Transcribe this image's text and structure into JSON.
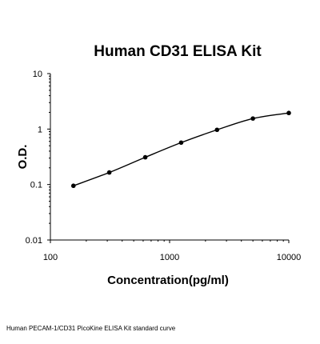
{
  "chart_data": {
    "type": "line",
    "title": "Human CD31 ELISA Kit",
    "xlabel": "Concentration(pg/ml)",
    "ylabel": "O.D.",
    "xscale": "log",
    "yscale": "log",
    "xlim": [
      100,
      10000
    ],
    "ylim": [
      0.01,
      10
    ],
    "xticks": [
      "100",
      "1000",
      "10000"
    ],
    "yticks": [
      "10",
      "1",
      "0.1",
      "0.01"
    ],
    "grid": false,
    "legend": "none",
    "marker_color": "#000000",
    "line_color": "#000000",
    "series": [
      {
        "x": [
          156,
          312,
          625,
          1250,
          2500,
          5000,
          10000
        ],
        "y": [
          0.095,
          0.165,
          0.31,
          0.57,
          0.97,
          1.55,
          1.95
        ]
      }
    ]
  },
  "caption": "Human PECAM-1/CD31 PicoKine ELISA Kit standard curve"
}
